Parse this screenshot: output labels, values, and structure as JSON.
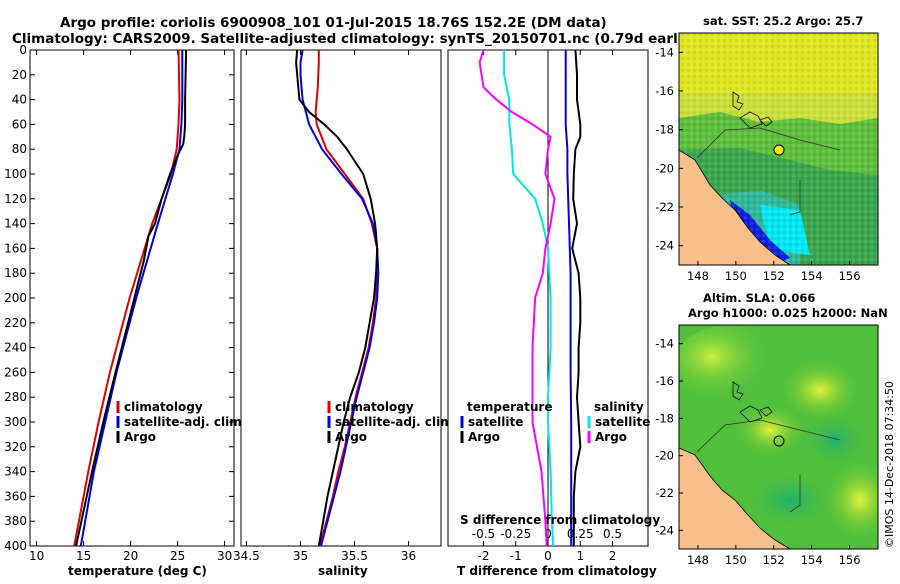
{
  "title": {
    "line1": "Argo profile: coriolis 6900908_101 01-Jul-2015 18.76S 152.2E (DM data)",
    "line2": "Climatology: CARS2009. Satellite-adjusted climatology: synTS_20150701.nc (0.79d earlier)"
  },
  "colors": {
    "climatology": "#e00000",
    "satellite": "#0000e0",
    "argo": "#000000",
    "sal_sat": "#00e6ee",
    "sal_argo": "#ff00ff"
  },
  "stamp": "©IMOS 14-Dec-2018 07:34:50",
  "chart_data": [
    {
      "type": "line",
      "panel": "temperature",
      "xlabel": "temperature (deg C)",
      "xlim": [
        9.3,
        31
      ],
      "ylim": [
        0,
        400
      ],
      "yticks": [
        "0",
        "20",
        "40",
        "60",
        "80",
        "100",
        "120",
        "140",
        "160",
        "180",
        "200",
        "220",
        "240",
        "260",
        "280",
        "300",
        "320",
        "340",
        "360",
        "380",
        "400"
      ],
      "xticks": [
        "10",
        "15",
        "20",
        "25",
        "30"
      ],
      "legend": [
        "climatology",
        "satellite-adj. clim.",
        "Argo"
      ],
      "series": [
        {
          "name": "climatology",
          "depth": [
            0,
            40,
            60,
            70,
            80,
            100,
            140,
            200,
            260,
            300,
            340,
            400
          ],
          "values": [
            25.1,
            25.2,
            25.1,
            25.0,
            24.9,
            24.3,
            22.3,
            19.9,
            17.8,
            16.6,
            15.5,
            14.0
          ]
        },
        {
          "name": "satellite-adj. clim.",
          "depth": [
            0,
            40,
            60,
            70,
            80,
            100,
            140,
            200,
            260,
            300,
            340,
            400
          ],
          "values": [
            25.5,
            25.5,
            25.4,
            25.3,
            25.2,
            24.5,
            22.9,
            20.6,
            18.5,
            17.3,
            16.1,
            14.7
          ]
        },
        {
          "name": "Argo",
          "depth": [
            0,
            40,
            60,
            70,
            76,
            85,
            100,
            120,
            140,
            150,
            170,
            200,
            260,
            300,
            340,
            400
          ],
          "values": [
            25.9,
            25.8,
            25.8,
            25.7,
            25.6,
            25.0,
            24.2,
            23.3,
            22.6,
            21.9,
            21.4,
            20.4,
            18.4,
            17.1,
            15.9,
            14.2
          ]
        }
      ]
    },
    {
      "type": "line",
      "panel": "salinity",
      "xlabel": "salinity",
      "xlim": [
        34.45,
        36.3
      ],
      "ylim": [
        0,
        400
      ],
      "xticks": [
        "34.5",
        "35",
        "35.5",
        "36"
      ],
      "legend": [
        "climatology",
        "satellite-adj. clim.",
        "Argo"
      ],
      "series": [
        {
          "name": "climatology",
          "depth": [
            0,
            10,
            30,
            40,
            50,
            60,
            80,
            100,
            120,
            140,
            160,
            180,
            200,
            220,
            240,
            260,
            280,
            300,
            320,
            340,
            360,
            380,
            400
          ],
          "values": [
            35.17,
            35.17,
            35.16,
            35.15,
            35.14,
            35.15,
            35.24,
            35.41,
            35.58,
            35.66,
            35.71,
            35.71,
            35.7,
            35.67,
            35.63,
            35.57,
            35.51,
            35.46,
            35.41,
            35.35,
            35.3,
            35.24,
            35.18
          ]
        },
        {
          "name": "satellite-adj. clim.",
          "depth": [
            0,
            10,
            20,
            30,
            40,
            50,
            60,
            80,
            100,
            120,
            140,
            160,
            180,
            200,
            220,
            240,
            260,
            280,
            300,
            320,
            340,
            360,
            380,
            400
          ],
          "values": [
            35.02,
            35.0,
            35.0,
            35.01,
            35.02,
            35.05,
            35.08,
            35.2,
            35.38,
            35.57,
            35.67,
            35.71,
            35.72,
            35.71,
            35.68,
            35.64,
            35.58,
            35.52,
            35.47,
            35.42,
            35.37,
            35.31,
            35.25,
            35.19
          ]
        },
        {
          "name": "Argo",
          "depth": [
            0,
            10,
            20,
            30,
            40,
            50,
            60,
            70,
            80,
            100,
            120,
            140,
            160,
            180,
            200,
            220,
            240,
            260,
            280,
            300,
            320,
            340,
            360,
            380,
            400
          ],
          "values": [
            34.97,
            34.96,
            34.97,
            34.98,
            34.99,
            35.08,
            35.22,
            35.34,
            35.43,
            35.58,
            35.65,
            35.69,
            35.71,
            35.7,
            35.68,
            35.64,
            35.6,
            35.54,
            35.46,
            35.4,
            35.35,
            35.3,
            35.25,
            35.21,
            35.17
          ]
        }
      ]
    },
    {
      "type": "line",
      "panel": "difference",
      "xlabel": "T difference from climatology",
      "xlabel_top": "S difference from climatology",
      "xlim": [
        -3.1,
        3.1
      ],
      "ylim": [
        0,
        400
      ],
      "xticks": [
        "-2",
        "-1",
        "0",
        "1",
        "2"
      ],
      "xticks_s": [
        "-0.5",
        "-0.25",
        "0",
        "0.25",
        "0.5"
      ],
      "legend_temperature": {
        "header": "temperature",
        "items": [
          "satellite",
          "Argo"
        ]
      },
      "legend_salinity": {
        "header": "salinity",
        "items": [
          "satellite",
          "Argo"
        ]
      },
      "series": [
        {
          "name": "T satellite",
          "depth": [
            0,
            20,
            40,
            60,
            80,
            100,
            140,
            180,
            220,
            260,
            300,
            340,
            400
          ],
          "values": [
            0.55,
            0.55,
            0.55,
            0.55,
            0.6,
            0.6,
            0.65,
            0.7,
            0.7,
            0.7,
            0.72,
            0.72,
            0.72
          ]
        },
        {
          "name": "T Argo",
          "depth": [
            0,
            20,
            40,
            60,
            70,
            80,
            100,
            120,
            140,
            160,
            180,
            200,
            220,
            240,
            260,
            280,
            300,
            320,
            340,
            360,
            380,
            400
          ],
          "values": [
            0.85,
            0.9,
            0.9,
            1.0,
            1.0,
            0.85,
            0.8,
            0.78,
            0.9,
            0.75,
            0.95,
            1.0,
            1.0,
            0.95,
            0.95,
            0.9,
            0.95,
            1.0,
            0.85,
            0.8,
            0.8,
            0.8
          ]
        },
        {
          "name": "S satellite",
          "depth": [
            0,
            20,
            40,
            60,
            80,
            100,
            120,
            140,
            160,
            200,
            240,
            280,
            300,
            340,
            380,
            400
          ],
          "values": [
            -0.34,
            -0.34,
            -0.3,
            -0.3,
            -0.28,
            -0.27,
            -0.1,
            -0.04,
            0.0,
            0.02,
            0.02,
            0.0,
            0.0,
            0.02,
            0.03,
            0.04
          ]
        },
        {
          "name": "S Argo",
          "depth": [
            0,
            10,
            30,
            40,
            50,
            60,
            70,
            80,
            100,
            120,
            140,
            160,
            180,
            200,
            240,
            280,
            300,
            340,
            380,
            400
          ],
          "values": [
            -0.5,
            -0.53,
            -0.5,
            -0.4,
            -0.28,
            -0.12,
            0.02,
            0.0,
            -0.02,
            0.05,
            0.02,
            -0.02,
            -0.04,
            -0.1,
            -0.12,
            -0.12,
            -0.12,
            -0.05,
            -0.02,
            -0.01
          ]
        }
      ]
    },
    {
      "type": "heatmap",
      "panel": "sst_map",
      "title": "sat. SST: 25.2 Argo: 25.7",
      "xticks": [
        "148",
        "150",
        "152",
        "154",
        "156"
      ],
      "yticks": [
        "-14",
        "-16",
        "-18",
        "-20",
        "-22",
        "-24"
      ],
      "xlim": [
        147,
        157.5
      ],
      "ylim": [
        -25,
        -13
      ]
    },
    {
      "type": "heatmap",
      "panel": "sla_map",
      "title1": "Altim. SLA: 0.066",
      "title2": "Argo h1000: 0.025 h2000: NaN",
      "xticks": [
        "148",
        "150",
        "152",
        "154",
        "156"
      ],
      "yticks": [
        "-14",
        "-16",
        "-18",
        "-20",
        "-22",
        "-24"
      ],
      "xlim": [
        147,
        157.5
      ],
      "ylim": [
        -25,
        -13
      ]
    }
  ]
}
